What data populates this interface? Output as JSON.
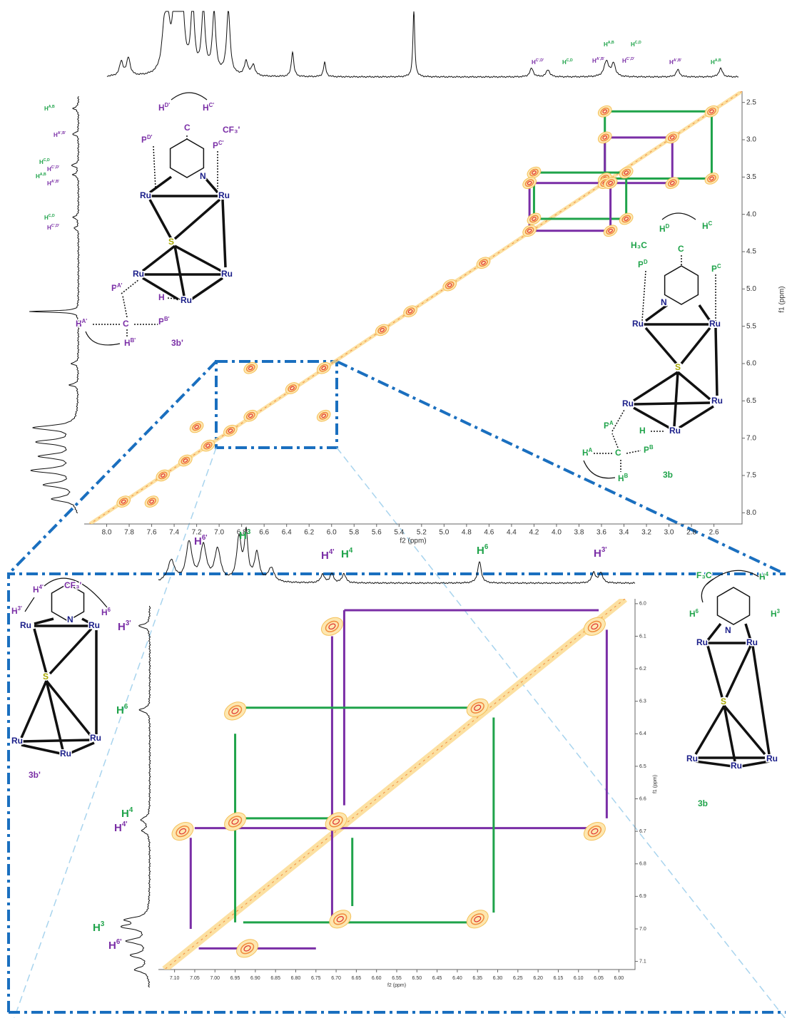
{
  "chart_data": [
    {
      "type": "cosy",
      "xlabel": "f2 (ppm)",
      "ylabel": "f1 (ppm)",
      "xlim": [
        8.2,
        2.35
      ],
      "ylim": [
        2.35,
        8.15
      ],
      "xticks": [
        {
          "value": 8,
          "label": "8.0"
        },
        7.8,
        7.6,
        7.4,
        7.2,
        {
          "value": 7,
          "label": "7.0"
        },
        6.8,
        6.6,
        6.4,
        6.2,
        {
          "value": 6,
          "label": "6.0"
        },
        5.8,
        5.6,
        5.4,
        5.2,
        {
          "value": 5,
          "label": "5.0"
        },
        4.8,
        4.6,
        4.4,
        4.2,
        {
          "value": 4,
          "label": "4.0"
        },
        3.8,
        3.6,
        3.4,
        3.2,
        {
          "value": 3,
          "label": "3.0"
        },
        2.8,
        2.6
      ],
      "yticks": [
        2.5,
        {
          "value": 3,
          "label": "3.0"
        },
        3.5,
        {
          "value": 4,
          "label": "4.0"
        },
        4.5,
        {
          "value": 5,
          "label": "5.0"
        },
        5.5,
        {
          "value": 6,
          "label": "6.0"
        },
        6.5,
        {
          "value": 7,
          "label": "7.0"
        },
        7.5,
        {
          "value": 8,
          "label": "8.0"
        }
      ],
      "peaks": {
        "x": [
          2.62,
          3.57,
          3.57,
          2.62,
          2.97,
          3.57,
          2.97,
          3.57,
          4.2,
          3.38,
          4.2,
          3.38,
          4.24,
          3.52,
          4.24,
          3.52,
          5.3,
          5.55,
          4.95,
          4.65,
          6.72,
          6.07,
          6.35,
          6.72,
          6.07,
          7.85,
          7.5,
          7.3,
          7.1,
          6.9,
          7.6,
          7.2
        ],
        "y": [
          2.62,
          2.62,
          3.52,
          3.52,
          2.97,
          2.97,
          3.58,
          3.58,
          3.44,
          3.44,
          4.06,
          4.06,
          3.58,
          3.58,
          4.22,
          4.22,
          5.3,
          5.55,
          4.95,
          4.65,
          6.06,
          6.06,
          6.33,
          6.7,
          6.7,
          7.85,
          7.5,
          7.3,
          7.1,
          6.9,
          7.85,
          6.85
        ]
      },
      "boxes": [
        {
          "color": "#1fa34a",
          "x": [
            3.57,
            2.62
          ],
          "y": [
            2.62,
            3.52
          ]
        },
        {
          "color": "#7a2ea6",
          "x": [
            3.57,
            2.97
          ],
          "y": [
            2.97,
            3.58
          ]
        },
        {
          "color": "#1fa34a",
          "x": [
            4.2,
            3.38
          ],
          "y": [
            3.44,
            4.06
          ]
        },
        {
          "color": "#7a2ea6",
          "x": [
            4.24,
            3.52
          ],
          "y": [
            3.58,
            4.22
          ]
        }
      ],
      "annotations": [
        {
          "text": "H",
          "sup": "C',D'"
        },
        {
          "text": "H",
          "sup": "C,D"
        },
        {
          "text": "H",
          "sup": "A,B"
        },
        {
          "text": "H",
          "sup": "C,D"
        },
        {
          "text": "H",
          "sup": "A',B'"
        },
        {
          "text": "H",
          "sup": "C',D'"
        },
        {
          "text": "H",
          "sup": "A',B'"
        },
        {
          "text": "H",
          "sup": "A,B"
        },
        {
          "text": "H",
          "sup": "A,B"
        },
        {
          "text": "H",
          "sup": "A',B'"
        },
        {
          "text": "H",
          "sup": "C,D"
        },
        {
          "text": "H",
          "sup": "C',D'"
        },
        {
          "text": "H",
          "sup": "A,B"
        },
        {
          "text": "H",
          "sup": "A',B'"
        },
        {
          "text": "H",
          "sup": "C,D"
        },
        {
          "text": "H",
          "sup": "C',D'"
        }
      ],
      "structures": [
        {
          "labels": [
            {
              "text": "H",
              "sup": "D'"
            },
            {
              "text": "H",
              "sup": "C'"
            },
            {
              "text": "C"
            },
            {
              "text": "CF₃'"
            },
            {
              "text": "P",
              "sup": "D'"
            },
            {
              "text": "P",
              "sup": "C'"
            },
            {
              "text": "N"
            },
            {
              "text": "Ru"
            },
            {
              "text": "Ru"
            },
            {
              "text": "S"
            },
            {
              "text": "Ru"
            },
            {
              "text": "Ru"
            },
            {
              "text": "Ru"
            },
            {
              "text": "H"
            },
            {
              "text": "P",
              "sup": "A'"
            },
            {
              "text": "H",
              "sup": "A'"
            },
            {
              "text": "C"
            },
            {
              "text": "P",
              "sup": "B'"
            },
            {
              "text": "H",
              "sup": "B'"
            },
            {
              "text": "3b'"
            }
          ]
        },
        {
          "labels": [
            {
              "text": "H",
              "sup": "D"
            },
            {
              "text": "H",
              "sup": "C"
            },
            {
              "text": "H₃C"
            },
            {
              "text": "C"
            },
            {
              "text": "P",
              "sup": "D"
            },
            {
              "text": "P",
              "sup": "C"
            },
            {
              "text": "N"
            },
            {
              "text": "Ru"
            },
            {
              "text": "Ru"
            },
            {
              "text": "S"
            },
            {
              "text": "Ru"
            },
            {
              "text": "Ru"
            },
            {
              "text": "Ru"
            },
            {
              "text": "H"
            },
            {
              "text": "P",
              "sup": "A"
            },
            {
              "text": "H",
              "sup": "A"
            },
            {
              "text": "C"
            },
            {
              "text": "P",
              "sup": "B"
            },
            {
              "text": "H",
              "sup": "B"
            },
            {
              "text": "3b"
            }
          ]
        }
      ]
    },
    {
      "type": "cosy",
      "xlabel": "f2 (ppm)",
      "ylabel": "f1 (ppm)",
      "xlim": [
        7.14,
        5.96
      ],
      "ylim": [
        5.985,
        7.125
      ],
      "xticks": [
        {
          "value": 7.1,
          "label": "7.10"
        },
        7.05,
        {
          "value": 7,
          "label": "7.00"
        },
        6.95,
        {
          "value": 6.9,
          "label": "6.90"
        },
        6.85,
        {
          "value": 6.8,
          "label": "6.80"
        },
        6.75,
        {
          "value": 6.7,
          "label": "6.70"
        },
        6.65,
        {
          "value": 6.6,
          "label": "6.60"
        },
        6.55,
        {
          "value": 6.5,
          "label": "6.50"
        },
        6.45,
        {
          "value": 6.4,
          "label": "6.40"
        },
        6.35,
        {
          "value": 6.3,
          "label": "6.30"
        },
        6.25,
        {
          "value": 6.2,
          "label": "6.20"
        },
        6.15,
        {
          "value": 6.1,
          "label": "6.10"
        },
        6.05,
        {
          "value": 6,
          "label": "6.00"
        }
      ],
      "yticks": [
        {
          "value": 6,
          "label": "6.0"
        },
        6.1,
        6.2,
        6.3,
        6.4,
        6.5,
        6.6,
        6.7,
        6.8,
        6.9,
        {
          "value": 7,
          "label": "7.0"
        },
        7.1
      ],
      "peaks": {
        "x": [
          6.71,
          6.06,
          6.95,
          6.35,
          6.95,
          6.7,
          6.06,
          6.69,
          6.35,
          7.08,
          6.92
        ],
        "y": [
          6.07,
          6.07,
          6.33,
          6.32,
          6.67,
          6.67,
          6.7,
          6.97,
          6.97,
          6.7,
          7.06
        ]
      },
      "lines": [
        {
          "color": "#7a2ea6",
          "x": [
            6.68,
            6.05
          ],
          "y": [
            6.02,
            6.02
          ]
        },
        {
          "color": "#7a2ea6",
          "x": [
            6.03,
            6.03
          ],
          "y": [
            6.08,
            6.66
          ]
        },
        {
          "color": "#7a2ea6",
          "x": [
            6.71,
            6.71
          ],
          "y": [
            6.1,
            6.98
          ]
        },
        {
          "color": "#7a2ea6",
          "x": [
            7.05,
            6.05
          ],
          "y": [
            6.69,
            6.69
          ]
        },
        {
          "color": "#7a2ea6",
          "x": [
            7.06,
            7.06
          ],
          "y": [
            6.72,
            7.0
          ]
        },
        {
          "color": "#7a2ea6",
          "x": [
            7.04,
            6.75
          ],
          "y": [
            7.06,
            7.06
          ]
        },
        {
          "color": "#7a2ea6",
          "x": [
            6.68,
            6.68
          ],
          "y": [
            6.02,
            6.62
          ]
        },
        {
          "color": "#1fa34a",
          "x": [
            6.93,
            6.33
          ],
          "y": [
            6.32,
            6.32
          ]
        },
        {
          "color": "#1fa34a",
          "x": [
            6.31,
            6.31
          ],
          "y": [
            6.35,
            6.95
          ]
        },
        {
          "color": "#1fa34a",
          "x": [
            6.95,
            6.95
          ],
          "y": [
            6.4,
            6.98
          ]
        },
        {
          "color": "#1fa34a",
          "x": [
            6.93,
            6.7
          ],
          "y": [
            6.66,
            6.66
          ]
        },
        {
          "color": "#1fa34a",
          "x": [
            6.93,
            6.33
          ],
          "y": [
            6.98,
            6.98
          ]
        },
        {
          "color": "#1fa34a",
          "x": [
            6.66,
            6.66
          ],
          "y": [
            6.72,
            6.93
          ]
        }
      ],
      "annotations": [
        {
          "text": "H",
          "sup": "6'"
        },
        {
          "text": "H",
          "sup": "3"
        },
        {
          "text": "H",
          "sup": "4'"
        },
        {
          "text": "H",
          "sup": "4"
        },
        {
          "text": "H",
          "sup": "6"
        },
        {
          "text": "H",
          "sup": "3'"
        },
        {
          "text": "H",
          "sup": "3'"
        },
        {
          "text": "H",
          "sup": "6"
        },
        {
          "text": "H",
          "sup": "4"
        },
        {
          "text": "H",
          "sup": "4'"
        },
        {
          "text": "H",
          "sup": "3"
        },
        {
          "text": "H",
          "sup": "6'"
        }
      ],
      "structures": [
        {
          "labels": [
            {
              "text": "CF₃'"
            },
            {
              "text": "H",
              "sup": "4'"
            },
            {
              "text": "H",
              "sup": "3'"
            },
            {
              "text": "H",
              "sup": "6"
            },
            {
              "text": "N"
            },
            {
              "text": "Ru"
            },
            {
              "text": "Ru"
            },
            {
              "text": "S"
            },
            {
              "text": "Ru"
            },
            {
              "text": "Ru"
            },
            {
              "text": "Ru"
            },
            {
              "text": "3b'"
            }
          ]
        },
        {
          "labels": [
            {
              "text": "F₃C"
            },
            {
              "text": "H",
              "sup": "4"
            },
            {
              "text": "H",
              "sup": "6"
            },
            {
              "text": "H",
              "sup": "3"
            },
            {
              "text": "N"
            },
            {
              "text": "Ru"
            },
            {
              "text": "Ru"
            },
            {
              "text": "S"
            },
            {
              "text": "Ru"
            },
            {
              "text": "Ru"
            },
            {
              "text": "Ru"
            },
            {
              "text": "3b"
            }
          ]
        }
      ]
    }
  ]
}
